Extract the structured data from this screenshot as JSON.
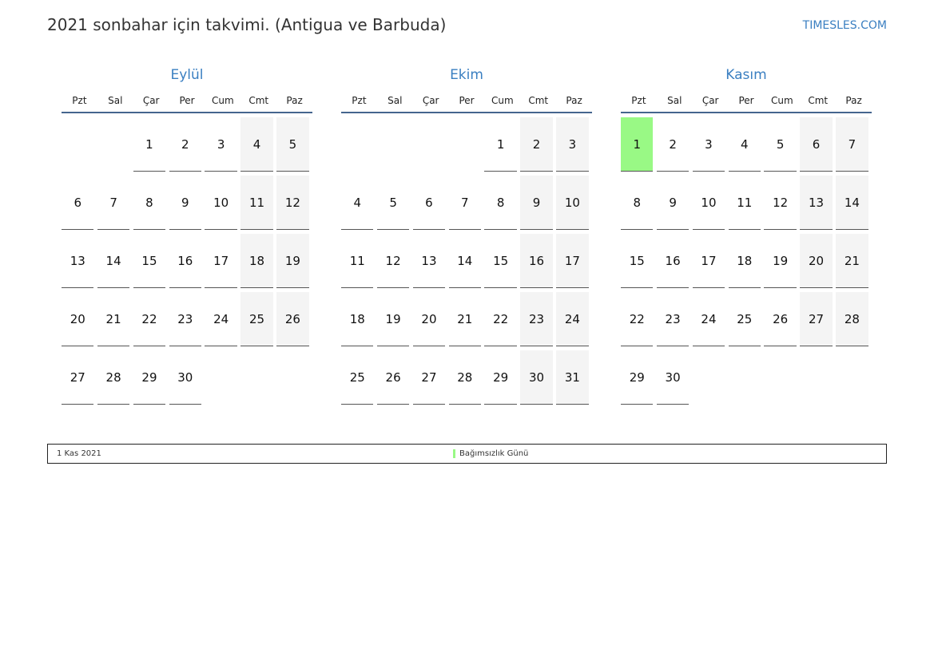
{
  "header": {
    "title": "2021 sonbahar için takvimi. (Antigua ve Barbuda)",
    "brand": "TIMESLES.COM"
  },
  "weekdays": [
    "Pzt",
    "Sal",
    "Çar",
    "Per",
    "Cum",
    "Cmt",
    "Paz"
  ],
  "colors": {
    "accent": "#3a7fc1",
    "holiday": "#99f985",
    "weekend": "#f4f4f4"
  },
  "months": [
    {
      "name": "Eylül",
      "weeks": [
        [
          null,
          null,
          1,
          2,
          3,
          4,
          5
        ],
        [
          6,
          7,
          8,
          9,
          10,
          11,
          12
        ],
        [
          13,
          14,
          15,
          16,
          17,
          18,
          19
        ],
        [
          20,
          21,
          22,
          23,
          24,
          25,
          26
        ],
        [
          27,
          28,
          29,
          30,
          null,
          null,
          null
        ]
      ]
    },
    {
      "name": "Ekim",
      "weeks": [
        [
          null,
          null,
          null,
          null,
          1,
          2,
          3
        ],
        [
          4,
          5,
          6,
          7,
          8,
          9,
          10
        ],
        [
          11,
          12,
          13,
          14,
          15,
          16,
          17
        ],
        [
          18,
          19,
          20,
          21,
          22,
          23,
          24
        ],
        [
          25,
          26,
          27,
          28,
          29,
          30,
          31
        ]
      ]
    },
    {
      "name": "Kasım",
      "holidays": [
        1
      ],
      "weeks": [
        [
          1,
          2,
          3,
          4,
          5,
          6,
          7
        ],
        [
          8,
          9,
          10,
          11,
          12,
          13,
          14
        ],
        [
          15,
          16,
          17,
          18,
          19,
          20,
          21
        ],
        [
          22,
          23,
          24,
          25,
          26,
          27,
          28
        ],
        [
          29,
          30,
          null,
          null,
          null,
          null,
          null
        ]
      ]
    }
  ],
  "legend": [
    {
      "date": "1 Kas 2021",
      "name": "Bağımsızlık Günü"
    }
  ]
}
